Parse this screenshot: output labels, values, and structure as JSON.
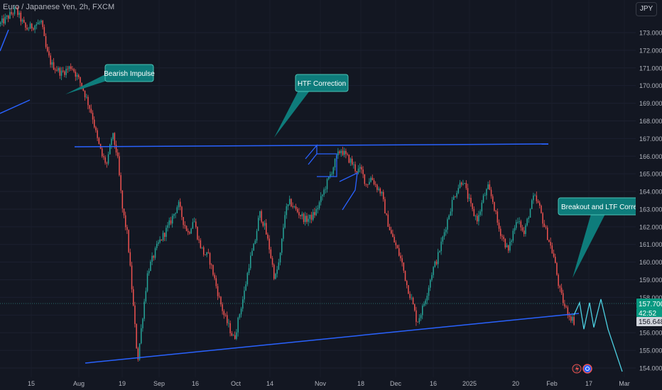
{
  "header": {
    "title": "Euro / Japanese Yen, 2h, FXCM",
    "currency": "JPY"
  },
  "price_badge": {
    "price": "157.700",
    "countdown": "42:52",
    "last_price": "156.648"
  },
  "axis_icons": [
    "lightning-icon",
    "flag-icon"
  ],
  "colors": {
    "background": "#131722",
    "up": "#26a69a",
    "down": "#ef5350",
    "trendline": "#2962ff",
    "callout": "#0e7c7b",
    "projection": "#4dd0e1",
    "price_label": "#089981"
  },
  "chart_data": {
    "type": "candlestick",
    "title": "Euro / Japanese Yen, 2h, FXCM",
    "symbol": "EURJPY",
    "timeframe": "2h",
    "x_ticks": [
      "15",
      "Aug",
      "19",
      "Sep",
      "16",
      "Oct",
      "14",
      "Nov",
      "18",
      "Dec",
      "16",
      "2025",
      "20",
      "Feb",
      "17",
      "Mar"
    ],
    "y_ticks": [
      "154.000",
      "155.000",
      "156.000",
      "157.000",
      "158.000",
      "159.000",
      "160.000",
      "161.000",
      "162.000",
      "163.000",
      "164.000",
      "165.000",
      "166.000",
      "167.000",
      "168.000",
      "169.000",
      "170.000",
      "171.000",
      "172.000",
      "173.000"
    ],
    "ylim": [
      153.6,
      174.0
    ],
    "current_price": 157.7,
    "last_close": 156.648,
    "price_path": [
      [
        0,
        173.5
      ],
      [
        3,
        174.3
      ],
      [
        5,
        173.2
      ],
      [
        8,
        173.6
      ],
      [
        9,
        172.0
      ],
      [
        10,
        171.2
      ],
      [
        12,
        170.7
      ],
      [
        14,
        171.1
      ],
      [
        16,
        170.0
      ],
      [
        18,
        168.4
      ],
      [
        19,
        167.0
      ],
      [
        20,
        166.0
      ],
      [
        21,
        165.5
      ],
      [
        22,
        167.3
      ],
      [
        23,
        166.0
      ],
      [
        24,
        163.0
      ],
      [
        25,
        161.5
      ],
      [
        26,
        158.0
      ],
      [
        27,
        154.4
      ],
      [
        28,
        157.0
      ],
      [
        29,
        159.5
      ],
      [
        31,
        161.0
      ],
      [
        33,
        162.0
      ],
      [
        35,
        163.3
      ],
      [
        36,
        162.3
      ],
      [
        37,
        161.6
      ],
      [
        38,
        162.5
      ],
      [
        39,
        161.2
      ],
      [
        40,
        160.5
      ],
      [
        41,
        160.3
      ],
      [
        42,
        159.2
      ],
      [
        43,
        158.0
      ],
      [
        44,
        157.0
      ],
      [
        45,
        156.3
      ],
      [
        46,
        155.6
      ],
      [
        47,
        157.0
      ],
      [
        48,
        158.3
      ],
      [
        49,
        160.0
      ],
      [
        50,
        161.0
      ],
      [
        51,
        162.8
      ],
      [
        52,
        162.0
      ],
      [
        53,
        160.7
      ],
      [
        54,
        159.0
      ],
      [
        55,
        160.2
      ],
      [
        56,
        162.8
      ],
      [
        57,
        163.4
      ],
      [
        58,
        163.0
      ],
      [
        59,
        162.7
      ],
      [
        60,
        162.4
      ],
      [
        61,
        162.5
      ],
      [
        62,
        162.8
      ],
      [
        63,
        163.5
      ],
      [
        64,
        164.3
      ],
      [
        65,
        165.0
      ],
      [
        66,
        165.8
      ],
      [
        67,
        166.4
      ],
      [
        68,
        166.0
      ],
      [
        69,
        165.7
      ],
      [
        70,
        165.2
      ],
      [
        71,
        165.2
      ],
      [
        72,
        164.4
      ],
      [
        73,
        164.8
      ],
      [
        74,
        164.3
      ],
      [
        75,
        163.9
      ],
      [
        76,
        162.5
      ],
      [
        77,
        161.5
      ],
      [
        78,
        160.8
      ],
      [
        79,
        160.0
      ],
      [
        80,
        158.7
      ],
      [
        81,
        157.8
      ],
      [
        82,
        156.6
      ],
      [
        83,
        157.3
      ],
      [
        84,
        158.3
      ],
      [
        85,
        159.5
      ],
      [
        86,
        160.2
      ],
      [
        87,
        161.3
      ],
      [
        88,
        162.4
      ],
      [
        89,
        163.5
      ],
      [
        90,
        164.2
      ],
      [
        91,
        164.7
      ],
      [
        92,
        163.7
      ],
      [
        93,
        162.8
      ],
      [
        94,
        162.4
      ],
      [
        95,
        163.6
      ],
      [
        96,
        164.2
      ],
      [
        97,
        163.4
      ],
      [
        98,
        162.0
      ],
      [
        99,
        161.3
      ],
      [
        100,
        160.6
      ],
      [
        101,
        161.8
      ],
      [
        102,
        162.6
      ],
      [
        103,
        161.5
      ],
      [
        104,
        162.7
      ],
      [
        105,
        163.7
      ],
      [
        106,
        163.2
      ],
      [
        107,
        162.1
      ],
      [
        108,
        161.2
      ],
      [
        109,
        160.2
      ],
      [
        110,
        158.5
      ],
      [
        111,
        157.5
      ],
      [
        112,
        157.0
      ],
      [
        113,
        156.6
      ]
    ],
    "trendlines": [
      {
        "from": [
          "Aug",
          166.5
        ],
        "to": [
          "Feb",
          166.7
        ]
      },
      {
        "from": [
          "Aug",
          154.3
        ],
        "to": [
          "Feb",
          157.2
        ]
      },
      {
        "from": [
          "Jul",
          168.2
        ],
        "to": [
          "Jul",
          169.2
        ]
      }
    ],
    "annotations": [
      "Bearish Impulse",
      "HTF Correction",
      "Breakout and LTF Correction"
    ],
    "projection": [
      157.0,
      157.7,
      156.2,
      157.7,
      156.3,
      157.9,
      156.2,
      153.8
    ]
  }
}
